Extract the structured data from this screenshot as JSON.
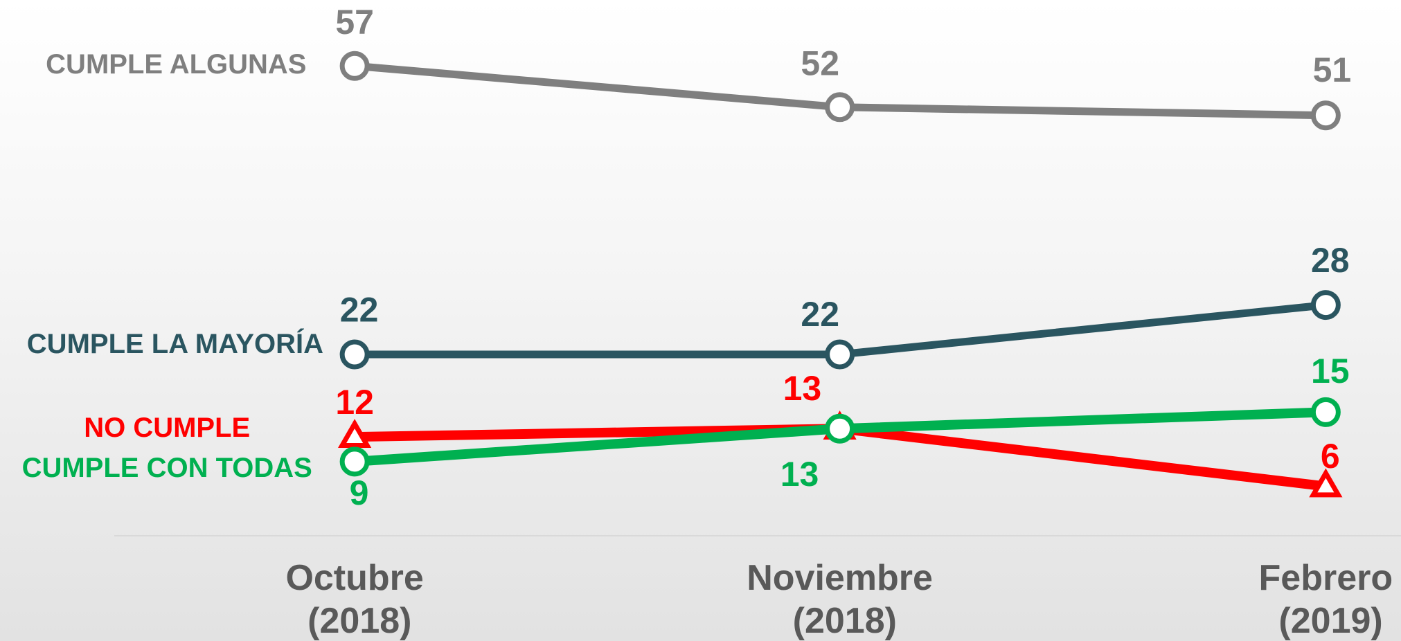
{
  "chart_data": {
    "type": "line",
    "categories": [
      "Octubre (2018)",
      "Noviembre (2018)",
      "Febrero (2019)"
    ],
    "ylim": [
      0,
      65
    ],
    "series": [
      {
        "name": "CUMPLE ALGUNAS",
        "color": "#7f7f7f",
        "marker": "circle",
        "values": [
          57,
          52,
          51
        ]
      },
      {
        "name": "CUMPLE LA MAYORÍA",
        "color": "#2a5560",
        "marker": "circle",
        "values": [
          22,
          22,
          28
        ]
      },
      {
        "name": "NO CUMPLE",
        "color": "#ff0000",
        "marker": "triangle",
        "values": [
          12,
          13,
          6
        ]
      },
      {
        "name": "CUMPLE CON TODAS",
        "color": "#00b050",
        "marker": "circle",
        "values": [
          9,
          13,
          15
        ]
      }
    ]
  }
}
